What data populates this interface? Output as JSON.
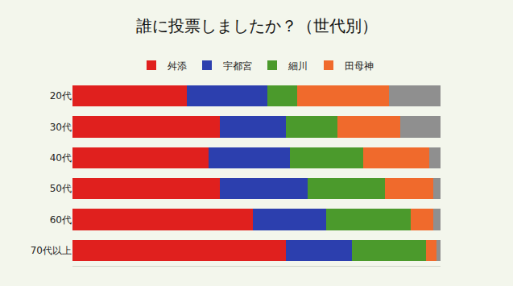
{
  "chart_data": {
    "type": "bar",
    "orientation": "horizontal",
    "stacked": true,
    "title": "誰に投票しましたか？（世代別）",
    "categories": [
      "20代",
      "30代",
      "40代",
      "50代",
      "60代",
      "70代以上"
    ],
    "series": [
      {
        "name": "舛添",
        "color": "#e0201e",
        "values": [
          31,
          40,
          37,
          40,
          49,
          58
        ]
      },
      {
        "name": "宇都宮",
        "color": "#2c3fae",
        "values": [
          22,
          18,
          22,
          24,
          20,
          18
        ]
      },
      {
        "name": "細川",
        "color": "#4b9a2c",
        "values": [
          8,
          14,
          20,
          21,
          23,
          20
        ]
      },
      {
        "name": "田母神",
        "color": "#f06a2c",
        "values": [
          25,
          17,
          18,
          13,
          6,
          3
        ]
      },
      {
        "name": null,
        "color": "#8f8f8f",
        "values": [
          14,
          11,
          3,
          2,
          2,
          1
        ]
      }
    ],
    "xlim": [
      0,
      100
    ],
    "tick_labels": "y",
    "grid": false,
    "legend": "top"
  }
}
